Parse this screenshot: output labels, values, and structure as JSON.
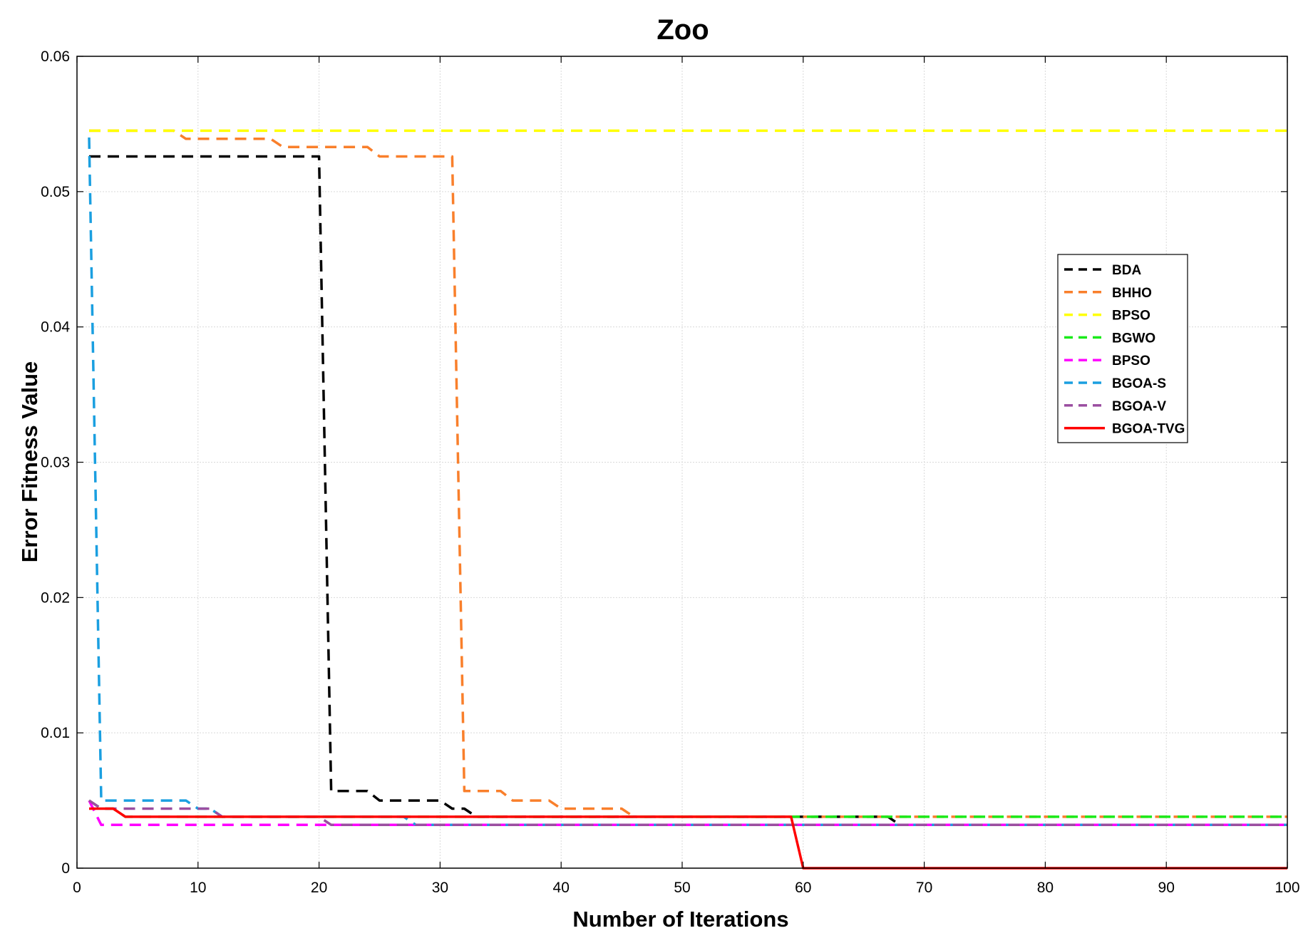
{
  "chart_data": {
    "type": "line",
    "title": "Zoo",
    "xlabel": "Number of Iterations",
    "ylabel": "Error Fitness Value",
    "xlim": [
      0,
      100
    ],
    "ylim": [
      0,
      0.06
    ],
    "xticks": [
      0,
      10,
      20,
      30,
      40,
      50,
      60,
      70,
      80,
      90,
      100
    ],
    "xtick_labels": [
      "0",
      "10",
      "20",
      "30",
      "40",
      "50",
      "60",
      "70",
      "80",
      "90",
      "100"
    ],
    "yticks": [
      0,
      0.01,
      0.02,
      0.03,
      0.04,
      0.05,
      0.06
    ],
    "ytick_labels": [
      "0",
      "0.01",
      "0.02",
      "0.03",
      "0.04",
      "0.05",
      "0.06"
    ],
    "grid": true,
    "legend_position": "right",
    "series": [
      {
        "name": "BDA",
        "color": "#000000",
        "style": "dashed",
        "points": [
          [
            1,
            0.0526
          ],
          [
            20,
            0.0526
          ],
          [
            21,
            0.0057
          ],
          [
            24,
            0.0057
          ],
          [
            25,
            0.005
          ],
          [
            30,
            0.005
          ],
          [
            31,
            0.0044
          ],
          [
            32,
            0.0044
          ],
          [
            33,
            0.0038
          ],
          [
            67,
            0.0038
          ],
          [
            68,
            0.0032
          ],
          [
            100,
            0.0032
          ]
        ]
      },
      {
        "name": "BHHO",
        "color": "#f97f2b",
        "style": "dashed",
        "points": [
          [
            1,
            0.0545
          ],
          [
            8,
            0.0545
          ],
          [
            9,
            0.0539
          ],
          [
            16,
            0.0539
          ],
          [
            17,
            0.0533
          ],
          [
            24,
            0.0533
          ],
          [
            25,
            0.0526
          ],
          [
            31,
            0.0526
          ],
          [
            32,
            0.0057
          ],
          [
            35,
            0.0057
          ],
          [
            36,
            0.005
          ],
          [
            39,
            0.005
          ],
          [
            40,
            0.0044
          ],
          [
            45,
            0.0044
          ],
          [
            46,
            0.0038
          ],
          [
            100,
            0.0038
          ]
        ]
      },
      {
        "name": "BPSO",
        "color": "#ffff00",
        "style": "dashed",
        "points": [
          [
            1,
            0.0545
          ],
          [
            100,
            0.0545
          ]
        ]
      },
      {
        "name": "BGWO",
        "color": "#1aeb1a",
        "style": "dashed",
        "points": [
          [
            1,
            0.005
          ],
          [
            2,
            0.0044
          ],
          [
            3,
            0.0044
          ],
          [
            4,
            0.0038
          ],
          [
            100,
            0.0038
          ]
        ]
      },
      {
        "name": "BPSO",
        "color": "#ff00ff",
        "style": "dashed",
        "points": [
          [
            1,
            0.005
          ],
          [
            2,
            0.0032
          ],
          [
            100,
            0.0032
          ]
        ]
      },
      {
        "name": "BGOA-S",
        "color": "#1a9fe0",
        "style": "dashed",
        "points": [
          [
            1,
            0.054
          ],
          [
            2,
            0.005
          ],
          [
            9,
            0.005
          ],
          [
            10,
            0.0044
          ],
          [
            11,
            0.0044
          ],
          [
            12,
            0.0038
          ],
          [
            27,
            0.0038
          ],
          [
            28,
            0.0032
          ],
          [
            100,
            0.0032
          ]
        ]
      },
      {
        "name": "BGOA-V",
        "color": "#9b4ea0",
        "style": "dashed",
        "points": [
          [
            1,
            0.005
          ],
          [
            2,
            0.0044
          ],
          [
            11,
            0.0044
          ],
          [
            12,
            0.0038
          ],
          [
            20,
            0.0038
          ],
          [
            21,
            0.0032
          ],
          [
            100,
            0.0032
          ]
        ]
      },
      {
        "name": "BGOA-TVG",
        "color": "#ff0000",
        "style": "solid",
        "points": [
          [
            1,
            0.0044
          ],
          [
            3,
            0.0044
          ],
          [
            4,
            0.0038
          ],
          [
            59,
            0.0038
          ],
          [
            60,
            0
          ],
          [
            100,
            0
          ]
        ]
      }
    ]
  }
}
